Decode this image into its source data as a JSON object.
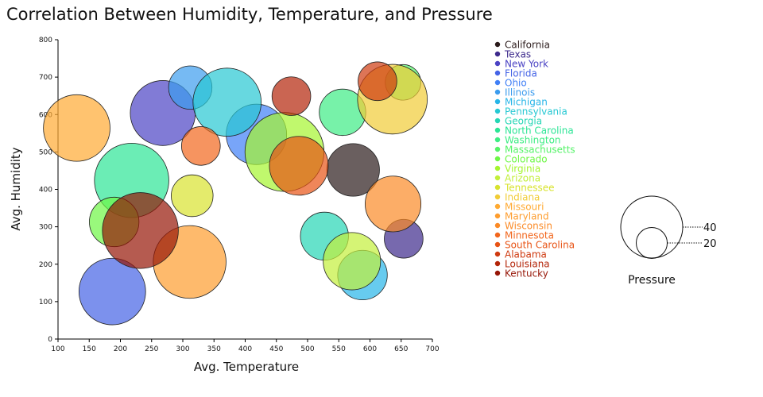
{
  "chart_data": {
    "type": "scatter",
    "variant": "bubble",
    "title": "Correlation Between Humidity, Temperature, and Pressure",
    "xlabel": "Avg. Temperature",
    "ylabel": "Avg. Humidity",
    "xlim": [
      100,
      700
    ],
    "ylim": [
      0,
      800
    ],
    "xticks": [
      100,
      150,
      200,
      250,
      300,
      350,
      400,
      450,
      500,
      550,
      600,
      650,
      700
    ],
    "yticks": [
      0,
      100,
      200,
      300,
      400,
      500,
      600,
      700,
      800
    ],
    "size_legend": {
      "title": "Pressure",
      "values": [
        40,
        20
      ]
    },
    "legend_position": "right",
    "series": [
      {
        "name": "California",
        "x": 573,
        "y": 452,
        "size": 34,
        "color": "#2b1b1b"
      },
      {
        "name": "Texas",
        "x": 654,
        "y": 268,
        "size": 25,
        "color": "#3d2a8c"
      },
      {
        "name": "New York",
        "x": 268,
        "y": 604,
        "size": 42,
        "color": "#4b43c4"
      },
      {
        "name": "Florida",
        "x": 187,
        "y": 127,
        "size": 43,
        "color": "#4463e6"
      },
      {
        "name": "Ohio",
        "x": 418,
        "y": 547,
        "size": 39,
        "color": "#3f7ff6"
      },
      {
        "name": "Illinois",
        "x": 312,
        "y": 672,
        "size": 28,
        "color": "#3c9cee"
      },
      {
        "name": "Michigan",
        "x": 588,
        "y": 171,
        "size": 32,
        "color": "#27b5e8"
      },
      {
        "name": "Pennsylvania",
        "x": 371,
        "y": 633,
        "size": 44,
        "color": "#26c8d3"
      },
      {
        "name": "Georgia",
        "x": 527,
        "y": 275,
        "size": 31,
        "color": "#25d6b5"
      },
      {
        "name": "North Carolina",
        "x": 218,
        "y": 424,
        "size": 48,
        "color": "#2ce596"
      },
      {
        "name": "Washington",
        "x": 556,
        "y": 606,
        "size": 30,
        "color": "#3ded84"
      },
      {
        "name": "Massachusetts",
        "x": 653,
        "y": 686,
        "size": 23,
        "color": "#55f368"
      },
      {
        "name": "Colorado",
        "x": 190,
        "y": 313,
        "size": 32,
        "color": "#6df744"
      },
      {
        "name": "Virginia",
        "x": 463,
        "y": 500,
        "size": 51,
        "color": "#a5f52f"
      },
      {
        "name": "Arizona",
        "x": 571,
        "y": 208,
        "size": 37,
        "color": "#c3ef3b"
      },
      {
        "name": "Tennessee",
        "x": 315,
        "y": 383,
        "size": 27,
        "color": "#d8e32e"
      },
      {
        "name": "Indiana",
        "x": 636,
        "y": 641,
        "size": 45,
        "color": "#f1cc36"
      },
      {
        "name": "Missouri",
        "x": 130,
        "y": 564,
        "size": 43,
        "color": "#ffaa32"
      },
      {
        "name": "Maryland",
        "x": 311,
        "y": 206,
        "size": 47,
        "color": "#fe9d2e"
      },
      {
        "name": "Wisconsin",
        "x": 637,
        "y": 361,
        "size": 36,
        "color": "#fb8a26"
      },
      {
        "name": "Minnesota",
        "x": 329,
        "y": 516,
        "size": 25,
        "color": "#f2661c"
      },
      {
        "name": "South Carolina",
        "x": 486,
        "y": 463,
        "size": 38,
        "color": "#e85314"
      },
      {
        "name": "Alabama",
        "x": 612,
        "y": 689,
        "size": 25,
        "color": "#cf3a10"
      },
      {
        "name": "Louisiana",
        "x": 474,
        "y": 649,
        "size": 25,
        "color": "#b32408"
      },
      {
        "name": "Kentucky",
        "x": 232,
        "y": 290,
        "size": 49,
        "color": "#961506"
      }
    ]
  }
}
